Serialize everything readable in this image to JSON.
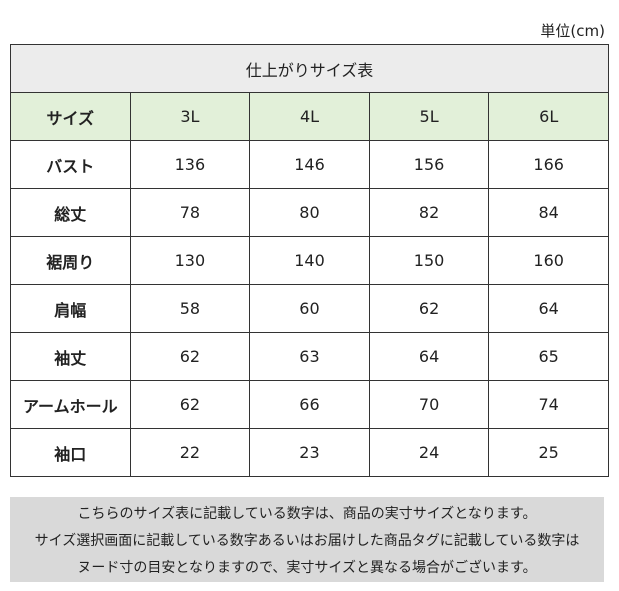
{
  "unit": "単位(cm)",
  "table": {
    "title": "仕上がりサイズ表",
    "header": [
      "サイズ",
      "3L",
      "4L",
      "5L",
      "6L"
    ],
    "rows": [
      [
        "バスト",
        136,
        146,
        156,
        166
      ],
      [
        "総丈",
        78,
        80,
        82,
        84
      ],
      [
        "裾周り",
        130,
        140,
        150,
        160
      ],
      [
        "肩幅",
        58,
        60,
        62,
        64
      ],
      [
        "袖丈",
        62,
        63,
        64,
        65
      ],
      [
        "アームホール",
        62,
        66,
        70,
        74
      ],
      [
        "袖口",
        22,
        23,
        24,
        25
      ]
    ]
  },
  "note": {
    "lines": [
      "こちらのサイズ表に記載している数字は、商品の実寸サイズとなります。",
      "サイズ選択画面に記載している数字あるいはお届けした商品タグに記載している数字は",
      "ヌード寸の目安となりますので、実寸サイズと異なる場合がございます。"
    ]
  }
}
